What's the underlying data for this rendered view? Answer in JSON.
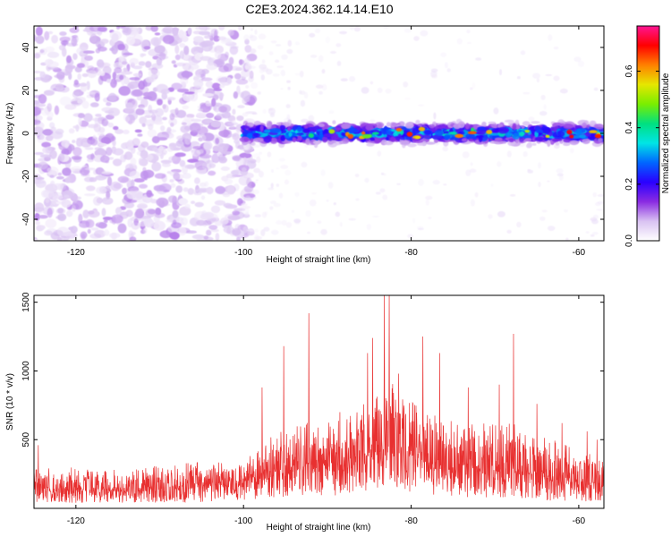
{
  "page_title": "C2E3.2024.362.14.14.E10",
  "chart_data": [
    {
      "type": "heatmap",
      "title": "C2E3.2024.362.14.14.E10",
      "xlabel": "Height of straight line (km)",
      "ylabel": "Frequency (Hz)",
      "xlim": [
        -125,
        -57
      ],
      "ylim": [
        -50,
        50
      ],
      "xticks": [
        -120,
        -100,
        -80,
        -60
      ],
      "yticks": [
        -40,
        -20,
        0,
        20,
        40
      ],
      "colorbar": {
        "label": "Normalized spectral amplitude",
        "range": [
          0,
          0.76
        ],
        "ticks": [
          0.0,
          0.2,
          0.4,
          0.6
        ],
        "tick_labels": [
          "0.0",
          "0.2",
          "0.4",
          "0.6"
        ],
        "colors": [
          "#ffffff",
          "#d9c2f2",
          "#8a2be2",
          "#2a00ff",
          "#0066ff",
          "#00e5e5",
          "#00e080",
          "#7aee00",
          "#e6e600",
          "#ff8000",
          "#ff0000",
          "#ff1493"
        ]
      },
      "noise_region": {
        "x_range": [
          -125,
          -100
        ],
        "y_range": [
          -50,
          50
        ],
        "typical_amplitude": 0.05
      },
      "signal_band": {
        "x_range": [
          -100,
          -57
        ],
        "y_center": 0,
        "half_width_hz": 3,
        "typical_amplitude": 0.25,
        "peak_amplitude": 0.7
      }
    },
    {
      "type": "line",
      "xlabel": "Height of straight line (km)",
      "ylabel": "SNR (10 * v/v)",
      "xlim": [
        -125,
        -57
      ],
      "ylim": [
        0,
        1550
      ],
      "xticks": [
        -120,
        -100,
        -80,
        -60
      ],
      "yticks": [
        500,
        1000,
        1500
      ],
      "color": "#e83030",
      "envelope": {
        "x": [
          -125,
          -120,
          -115,
          -110,
          -105,
          -100,
          -98,
          -96,
          -94,
          -92,
          -90,
          -88,
          -86,
          -84,
          -83,
          -82,
          -80,
          -78,
          -76,
          -74,
          -72,
          -70,
          -68,
          -66,
          -64,
          -62,
          -60,
          -58,
          -57
        ],
        "lower": [
          40,
          40,
          40,
          40,
          45,
          60,
          70,
          80,
          80,
          90,
          90,
          100,
          120,
          140,
          150,
          140,
          120,
          100,
          90,
          80,
          80,
          80,
          80,
          70,
          60,
          50,
          50,
          50,
          50
        ],
        "upper": [
          310,
          300,
          290,
          310,
          340,
          400,
          470,
          560,
          610,
          640,
          630,
          650,
          780,
          900,
          1000,
          880,
          780,
          700,
          650,
          650,
          620,
          620,
          640,
          560,
          540,
          470,
          430,
          400,
          380
        ]
      },
      "peaks": [
        {
          "x": -124.5,
          "y": 460
        },
        {
          "x": -97.8,
          "y": 880
        },
        {
          "x": -95.2,
          "y": 1180
        },
        {
          "x": -92.2,
          "y": 1420
        },
        {
          "x": -88.5,
          "y": 700
        },
        {
          "x": -85.2,
          "y": 1130
        },
        {
          "x": -84.6,
          "y": 1240
        },
        {
          "x": -83.2,
          "y": 1550
        },
        {
          "x": -82.6,
          "y": 1550
        },
        {
          "x": -81.5,
          "y": 980
        },
        {
          "x": -78.6,
          "y": 1250
        },
        {
          "x": -76.6,
          "y": 1130
        },
        {
          "x": -73.2,
          "y": 880
        },
        {
          "x": -69.5,
          "y": 900
        },
        {
          "x": -67.8,
          "y": 1270
        },
        {
          "x": -65.0,
          "y": 760
        },
        {
          "x": -62.0,
          "y": 620
        },
        {
          "x": -59.0,
          "y": 560
        },
        {
          "x": -57.8,
          "y": 500
        }
      ]
    }
  ]
}
